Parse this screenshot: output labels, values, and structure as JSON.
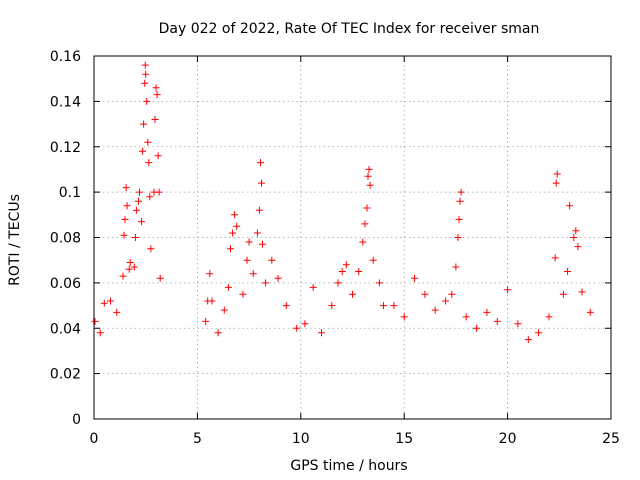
{
  "chart_data": {
    "type": "scatter",
    "title": "Day 022 of 2022, Rate Of TEC Index for receiver sman",
    "xlabel": "GPS time / hours",
    "ylabel": "ROTI / TECUs",
    "xlim": [
      0,
      25
    ],
    "ylim": [
      0,
      0.16
    ],
    "xticks": [
      "0",
      "5",
      "10",
      "15",
      "20",
      "25"
    ],
    "yticks": [
      "0",
      "0.02",
      "0.04",
      "0.06",
      "0.08",
      "0.1",
      "0.12",
      "0.14",
      "0.16"
    ],
    "grid": true,
    "marker": "plus",
    "color": "#ff0000",
    "points": [
      [
        0.05,
        0.043
      ],
      [
        0.3,
        0.038
      ],
      [
        0.5,
        0.051
      ],
      [
        0.8,
        0.052
      ],
      [
        1.1,
        0.047
      ],
      [
        1.4,
        0.063
      ],
      [
        1.45,
        0.081
      ],
      [
        1.5,
        0.088
      ],
      [
        1.55,
        0.102
      ],
      [
        1.6,
        0.094
      ],
      [
        1.7,
        0.066
      ],
      [
        1.75,
        0.069
      ],
      [
        1.95,
        0.067
      ],
      [
        2.0,
        0.08
      ],
      [
        2.05,
        0.092
      ],
      [
        2.15,
        0.096
      ],
      [
        2.2,
        0.1
      ],
      [
        2.3,
        0.087
      ],
      [
        2.35,
        0.118
      ],
      [
        2.4,
        0.13
      ],
      [
        2.45,
        0.148
      ],
      [
        2.48,
        0.156
      ],
      [
        2.5,
        0.152
      ],
      [
        2.55,
        0.14
      ],
      [
        2.6,
        0.122
      ],
      [
        2.65,
        0.113
      ],
      [
        2.7,
        0.098
      ],
      [
        2.75,
        0.075
      ],
      [
        2.9,
        0.1
      ],
      [
        2.95,
        0.132
      ],
      [
        3.0,
        0.146
      ],
      [
        3.05,
        0.143
      ],
      [
        3.1,
        0.116
      ],
      [
        3.15,
        0.1
      ],
      [
        3.2,
        0.062
      ],
      [
        5.4,
        0.043
      ],
      [
        5.5,
        0.052
      ],
      [
        5.6,
        0.064
      ],
      [
        5.7,
        0.052
      ],
      [
        6.0,
        0.038
      ],
      [
        6.3,
        0.048
      ],
      [
        6.5,
        0.058
      ],
      [
        6.6,
        0.075
      ],
      [
        6.7,
        0.082
      ],
      [
        6.8,
        0.09
      ],
      [
        6.9,
        0.085
      ],
      [
        7.2,
        0.055
      ],
      [
        7.4,
        0.07
      ],
      [
        7.5,
        0.078
      ],
      [
        7.7,
        0.064
      ],
      [
        7.9,
        0.082
      ],
      [
        8.0,
        0.092
      ],
      [
        8.05,
        0.113
      ],
      [
        8.1,
        0.104
      ],
      [
        8.15,
        0.077
      ],
      [
        8.3,
        0.06
      ],
      [
        8.6,
        0.07
      ],
      [
        8.9,
        0.062
      ],
      [
        9.3,
        0.05
      ],
      [
        9.8,
        0.04
      ],
      [
        10.2,
        0.042
      ],
      [
        10.6,
        0.058
      ],
      [
        11.0,
        0.038
      ],
      [
        11.5,
        0.05
      ],
      [
        11.8,
        0.06
      ],
      [
        12.0,
        0.065
      ],
      [
        12.2,
        0.068
      ],
      [
        12.5,
        0.055
      ],
      [
        12.8,
        0.065
      ],
      [
        13.0,
        0.078
      ],
      [
        13.1,
        0.086
      ],
      [
        13.2,
        0.093
      ],
      [
        13.25,
        0.107
      ],
      [
        13.3,
        0.11
      ],
      [
        13.35,
        0.103
      ],
      [
        13.5,
        0.07
      ],
      [
        13.8,
        0.06
      ],
      [
        14.0,
        0.05
      ],
      [
        14.5,
        0.05
      ],
      [
        15.0,
        0.045
      ],
      [
        15.5,
        0.062
      ],
      [
        16.0,
        0.055
      ],
      [
        16.5,
        0.048
      ],
      [
        17.0,
        0.052
      ],
      [
        17.3,
        0.055
      ],
      [
        17.5,
        0.067
      ],
      [
        17.6,
        0.08
      ],
      [
        17.65,
        0.088
      ],
      [
        17.7,
        0.096
      ],
      [
        17.75,
        0.1
      ],
      [
        18.0,
        0.045
      ],
      [
        18.5,
        0.04
      ],
      [
        19.0,
        0.047
      ],
      [
        19.5,
        0.043
      ],
      [
        20.0,
        0.057
      ],
      [
        20.5,
        0.042
      ],
      [
        21.0,
        0.035
      ],
      [
        21.5,
        0.038
      ],
      [
        22.0,
        0.045
      ],
      [
        22.3,
        0.071
      ],
      [
        22.35,
        0.104
      ],
      [
        22.4,
        0.108
      ],
      [
        22.7,
        0.055
      ],
      [
        22.9,
        0.065
      ],
      [
        23.0,
        0.094
      ],
      [
        23.2,
        0.08
      ],
      [
        23.3,
        0.083
      ],
      [
        23.4,
        0.076
      ],
      [
        23.6,
        0.056
      ],
      [
        24.0,
        0.047
      ]
    ]
  }
}
